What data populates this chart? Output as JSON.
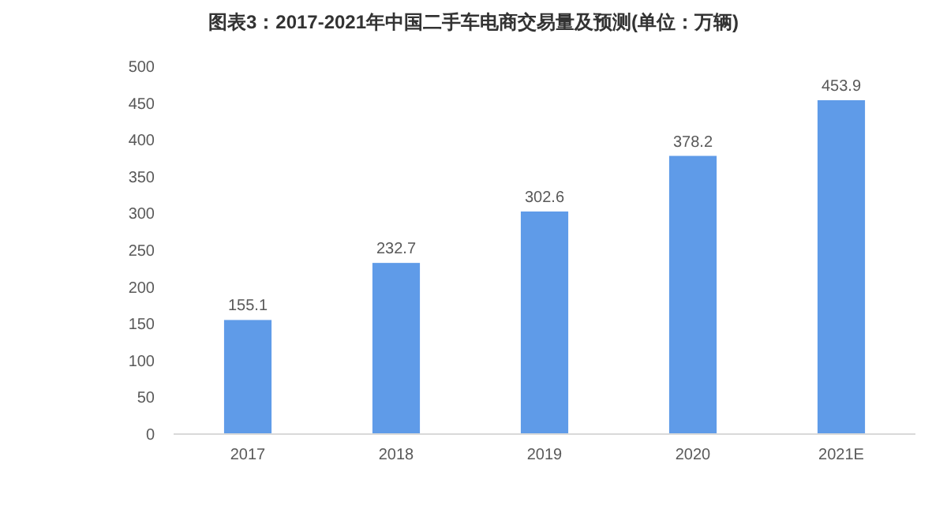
{
  "chart_data": {
    "type": "bar",
    "title": "图表3：2017-2021年中国二手车电商交易量及预测(单位：万辆)",
    "categories": [
      "2017",
      "2018",
      "2019",
      "2020",
      "2021E"
    ],
    "values": [
      155.1,
      232.7,
      302.6,
      378.2,
      453.9
    ],
    "color": "#5f9be8",
    "ylim": [
      0,
      500
    ],
    "yticks": [
      0,
      50,
      100,
      150,
      200,
      250,
      300,
      350,
      400,
      450,
      500
    ],
    "data_labels": true,
    "grid": false
  }
}
